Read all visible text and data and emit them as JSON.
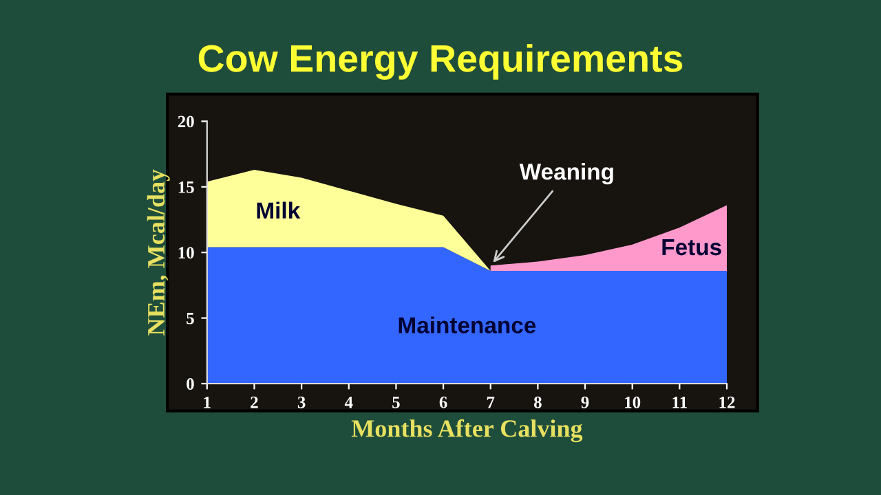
{
  "chart_data": {
    "type": "area",
    "stacked": true,
    "title": "Cow Energy Requirements",
    "xlabel": "Months After Calving",
    "ylabel": "NEm, Mcal/day",
    "x": [
      1,
      2,
      3,
      4,
      5,
      6,
      7,
      8,
      9,
      10,
      11,
      12
    ],
    "series": [
      {
        "name": "Maintenance",
        "color": "#3366ff",
        "values": [
          10.4,
          10.4,
          10.4,
          10.4,
          10.4,
          10.4,
          8.6,
          8.6,
          8.6,
          8.6,
          8.6,
          8.6
        ]
      },
      {
        "name": "Milk",
        "color": "#ffff99",
        "values": [
          5.0,
          5.9,
          5.3,
          4.3,
          3.3,
          2.4,
          0,
          null,
          null,
          null,
          null,
          null
        ]
      },
      {
        "name": "Fetus",
        "color": "#ff99cc",
        "values": [
          null,
          null,
          null,
          null,
          null,
          null,
          0.4,
          0.7,
          1.2,
          2.0,
          3.3,
          5.0
        ]
      }
    ],
    "xlim": [
      1,
      12
    ],
    "xticks": [
      1,
      2,
      3,
      4,
      5,
      6,
      7,
      8,
      9,
      10,
      11,
      12
    ],
    "ylim": [
      0,
      20
    ],
    "yticks": [
      0,
      5,
      10,
      15,
      20
    ],
    "annotations": [
      {
        "text": "Weaning",
        "x": 7,
        "y": 9.0
      }
    ],
    "grid": false,
    "legend": false
  }
}
